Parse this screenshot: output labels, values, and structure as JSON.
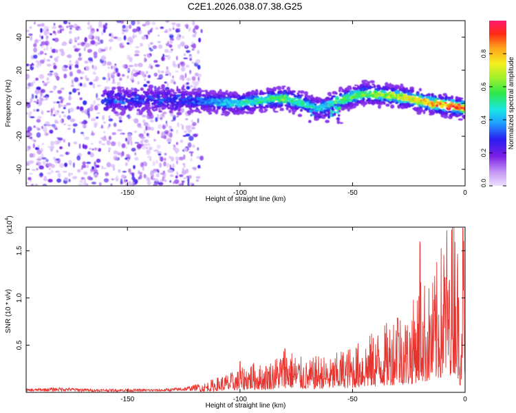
{
  "title": "C2E1.2026.038.07.38.G25",
  "chart_data": [
    {
      "type": "heatmap",
      "xlabel": "Height of straight line (km)",
      "ylabel": "Frequency (Hz)",
      "xlim": [
        -195,
        0
      ],
      "ylim": [
        -50,
        50
      ],
      "x_ticks": [
        -150,
        -100,
        -50,
        0
      ],
      "y_ticks": [
        -40,
        -20,
        0,
        20,
        40
      ],
      "x_tick_labels": [
        "-150",
        "-100",
        "-50",
        "0"
      ],
      "y_tick_labels": [
        "-40",
        "-20",
        "0",
        "20",
        "40"
      ],
      "colorbar": {
        "label": "Normalized spectral amplitude",
        "range": [
          0.0,
          1.0
        ],
        "ticks": [
          0.0,
          0.2,
          0.4,
          0.6,
          0.8
        ],
        "tick_labels": [
          "0.0",
          "0.2",
          "0.4",
          "0.6",
          "0.8"
        ]
      },
      "ridge": {
        "x": [
          -125,
          -115,
          -100,
          -90,
          -80,
          -72,
          -65,
          -55,
          -45,
          -35,
          -25,
          -15,
          -5,
          0
        ],
        "y": [
          2,
          1,
          0,
          2,
          3,
          0,
          -3,
          2,
          6,
          5,
          3,
          0,
          -2,
          -3
        ],
        "amplitude": [
          0.3,
          0.35,
          0.5,
          0.55,
          0.6,
          0.5,
          0.45,
          0.55,
          0.6,
          0.65,
          0.75,
          0.85,
          0.95,
          0.9
        ]
      },
      "noise_region": [
        -195,
        -117
      ]
    },
    {
      "type": "line",
      "xlabel": "Height of straight line (km)",
      "ylabel": "SNR (10 * v/v)",
      "y_scale_label": "(x10",
      "y_scale_exp": "4",
      "xlim": [
        -195,
        0
      ],
      "ylim": [
        0,
        1.75
      ],
      "x_ticks": [
        -150,
        -100,
        -50,
        0
      ],
      "y_ticks": [
        0.5,
        1.0,
        1.5
      ],
      "x_tick_labels": [
        "-150",
        "-100",
        "-50",
        "0"
      ],
      "y_tick_labels": [
        "0.5",
        "1.0",
        "1.5"
      ],
      "color": "#e8332e",
      "series": [
        {
          "name": "SNR",
          "x": [
            -195,
            -180,
            -165,
            -150,
            -135,
            -125,
            -118,
            -110,
            -100,
            -95,
            -90,
            -85,
            -80,
            -75,
            -70,
            -65,
            -60,
            -55,
            -50,
            -45,
            -40,
            -35,
            -30,
            -25,
            -20,
            -15,
            -10,
            -6,
            -4,
            -2,
            -1,
            0
          ],
          "y": [
            0.02,
            0.03,
            0.02,
            0.02,
            0.02,
            0.03,
            0.05,
            0.1,
            0.15,
            0.2,
            0.18,
            0.22,
            0.3,
            0.25,
            0.2,
            0.25,
            0.22,
            0.28,
            0.3,
            0.35,
            0.4,
            0.45,
            0.55,
            0.5,
            0.75,
            0.7,
            1.0,
            1.25,
            1.3,
            0.4,
            1.75,
            0.2
          ]
        }
      ],
      "peaks": [
        {
          "x": -100,
          "y": 0.33
        },
        {
          "x": -80,
          "y": 0.47
        },
        {
          "x": -30,
          "y": 0.8
        },
        {
          "x": -20,
          "y": 1.62
        },
        {
          "x": -7,
          "y": 1.2
        },
        {
          "x": -1,
          "y": 1.75
        }
      ]
    }
  ]
}
